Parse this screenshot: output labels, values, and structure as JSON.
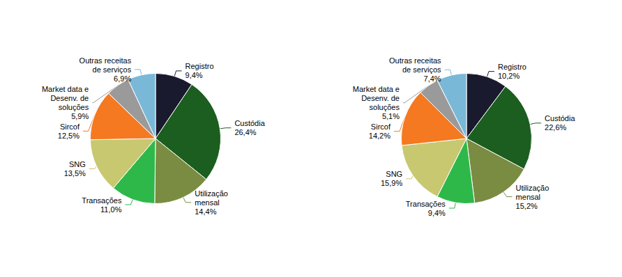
{
  "chart_data": [
    {
      "type": "pie",
      "categories": [
        "Registro",
        "Custódia",
        "Utilização\nmensal",
        "Transações",
        "SNG",
        "Sircof",
        "Market data e\nDesenv. de\nsoluções",
        "Outras receitas\nde serviços"
      ],
      "values": [
        9.4,
        26.4,
        14.4,
        11.0,
        13.5,
        12.5,
        5.9,
        6.9
      ],
      "value_labels": [
        "9,4%",
        "26,4%",
        "14,4%",
        "11,0%",
        "13,5%",
        "12,5%",
        "5,9%",
        "6,9%"
      ],
      "colors": [
        "#1a1a2e",
        "#1b5e1f",
        "#7a8c42",
        "#2eb84a",
        "#c8c870",
        "#f47920",
        "#9a9a9a",
        "#7ab8d8"
      ],
      "data_labels": true
    },
    {
      "type": "pie",
      "categories": [
        "Registro",
        "Custódia",
        "Utilização\nmensal",
        "Transações",
        "SNG",
        "Sircof",
        "Market data e\nDesenv. de\nsoluções",
        "Outras receitas\nde serviços"
      ],
      "values": [
        10.2,
        22.6,
        15.2,
        9.4,
        15.9,
        14.2,
        5.1,
        7.4
      ],
      "value_labels": [
        "10,2%",
        "22,6%",
        "15,2%",
        "9,4%",
        "15,9%",
        "14,2%",
        "5,1%",
        "7,4%"
      ],
      "colors": [
        "#1a1a2e",
        "#1b5e1f",
        "#7a8c42",
        "#2eb84a",
        "#c8c870",
        "#f47920",
        "#9a9a9a",
        "#7ab8d8"
      ],
      "data_labels": true
    }
  ]
}
